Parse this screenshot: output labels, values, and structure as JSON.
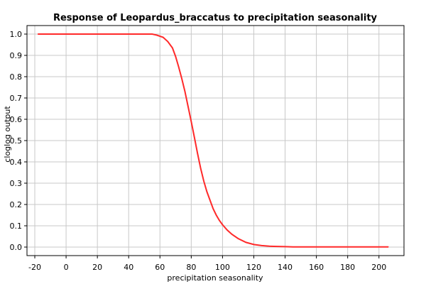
{
  "chart_data": {
    "type": "line",
    "title": "Response of Leopardus_braccatus to precipitation seasonality",
    "xlabel": "precipitation seasonality",
    "ylabel": "cloglog output",
    "xlim": [
      -25,
      216
    ],
    "ylim": [
      -0.04,
      1.04
    ],
    "x_ticks": [
      -20,
      0,
      20,
      40,
      60,
      80,
      100,
      120,
      140,
      160,
      180,
      200
    ],
    "x_tick_labels": [
      "-20",
      "0",
      "20",
      "40",
      "60",
      "80",
      "100",
      "120",
      "140",
      "160",
      "180",
      "200"
    ],
    "y_ticks": [
      0.0,
      0.1,
      0.2,
      0.3,
      0.4,
      0.5,
      0.6,
      0.7,
      0.8,
      0.9,
      1.0
    ],
    "y_tick_labels": [
      "0.0",
      "0.1",
      "0.2",
      "0.3",
      "0.4",
      "0.5",
      "0.6",
      "0.7",
      "0.8",
      "0.9",
      "1.0"
    ],
    "grid": true,
    "legend": "none",
    "colors": {
      "line": "#ff2a2a",
      "grid": "#c8c8c8",
      "axis": "#000000",
      "background": "#ffffff"
    },
    "series": [
      {
        "x": [
          -18,
          0,
          20,
          40,
          55,
          58,
          62,
          65,
          68,
          70,
          72,
          74,
          76,
          78,
          80,
          82,
          84,
          86,
          88,
          90,
          92,
          94,
          96,
          98,
          100,
          103,
          106,
          110,
          115,
          120,
          125,
          130,
          135,
          140,
          145,
          160,
          180,
          206
        ],
        "y": [
          1.0,
          1.0,
          1.0,
          1.0,
          1.0,
          0.995,
          0.985,
          0.965,
          0.935,
          0.895,
          0.845,
          0.79,
          0.73,
          0.66,
          0.59,
          0.515,
          0.44,
          0.37,
          0.31,
          0.26,
          0.22,
          0.18,
          0.15,
          0.125,
          0.105,
          0.08,
          0.06,
          0.04,
          0.022,
          0.012,
          0.007,
          0.004,
          0.003,
          0.002,
          0.001,
          0.001,
          0.001,
          0.001
        ]
      }
    ]
  }
}
